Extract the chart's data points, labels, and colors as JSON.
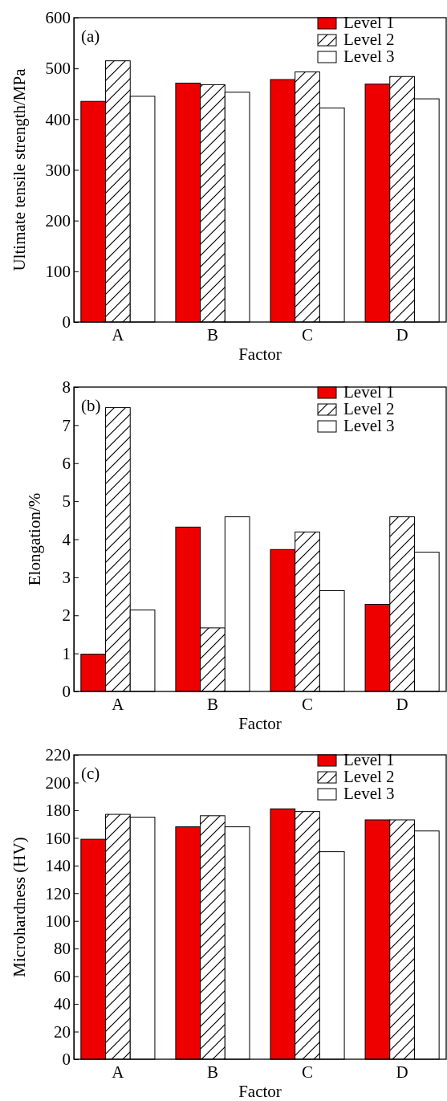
{
  "chart_data": [
    {
      "type": "bar",
      "title": "(a)",
      "xlabel": "Factor",
      "ylabel": "Ultimate tensile strength/MPa",
      "categories": [
        "A",
        "B",
        "C",
        "D"
      ],
      "ylim": [
        0,
        600
      ],
      "yticks": [
        0,
        100,
        200,
        300,
        400,
        500,
        600
      ],
      "legend": "top right",
      "series": [
        {
          "name": "Level 1",
          "color": "#ee0000",
          "values": [
            435,
            471,
            478,
            469
          ]
        },
        {
          "name": "Level 2",
          "color": "#ffffff",
          "values": [
            515,
            468,
            493,
            484
          ]
        },
        {
          "name": "Level 3",
          "color": "#ffffff",
          "values": [
            445,
            453,
            422,
            440
          ]
        }
      ]
    },
    {
      "type": "bar",
      "title": "(b)",
      "xlabel": "Factor",
      "ylabel": "Elongation/%",
      "categories": [
        "A",
        "B",
        "C",
        "D"
      ],
      "ylim": [
        0,
        8
      ],
      "yticks": [
        0,
        1,
        2,
        3,
        4,
        5,
        6,
        7,
        8
      ],
      "legend": "top right",
      "series": [
        {
          "name": "Level 1",
          "color": "#ee0000",
          "values": [
            0.98,
            4.32,
            3.73,
            2.29
          ]
        },
        {
          "name": "Level 2",
          "color": "#ffffff",
          "values": [
            7.46,
            1.67,
            4.19,
            4.59
          ]
        },
        {
          "name": "Level 3",
          "color": "#ffffff",
          "values": [
            2.14,
            4.59,
            2.65,
            3.66
          ]
        }
      ]
    },
    {
      "type": "bar",
      "title": "(c)",
      "xlabel": "Factor",
      "ylabel": "Microhardness (HV)",
      "categories": [
        "A",
        "B",
        "C",
        "D"
      ],
      "ylim": [
        0,
        220
      ],
      "yticks": [
        0,
        20,
        40,
        60,
        80,
        100,
        120,
        140,
        160,
        180,
        200,
        220
      ],
      "legend": "top right",
      "series": [
        {
          "name": "Level 1",
          "color": "#ee0000",
          "values": [
            159,
            168,
            181,
            173
          ]
        },
        {
          "name": "Level 2",
          "color": "#ffffff",
          "values": [
            177,
            176,
            179,
            173
          ]
        },
        {
          "name": "Level 3",
          "color": "#ffffff",
          "values": [
            175,
            168,
            150,
            165
          ]
        }
      ]
    }
  ]
}
